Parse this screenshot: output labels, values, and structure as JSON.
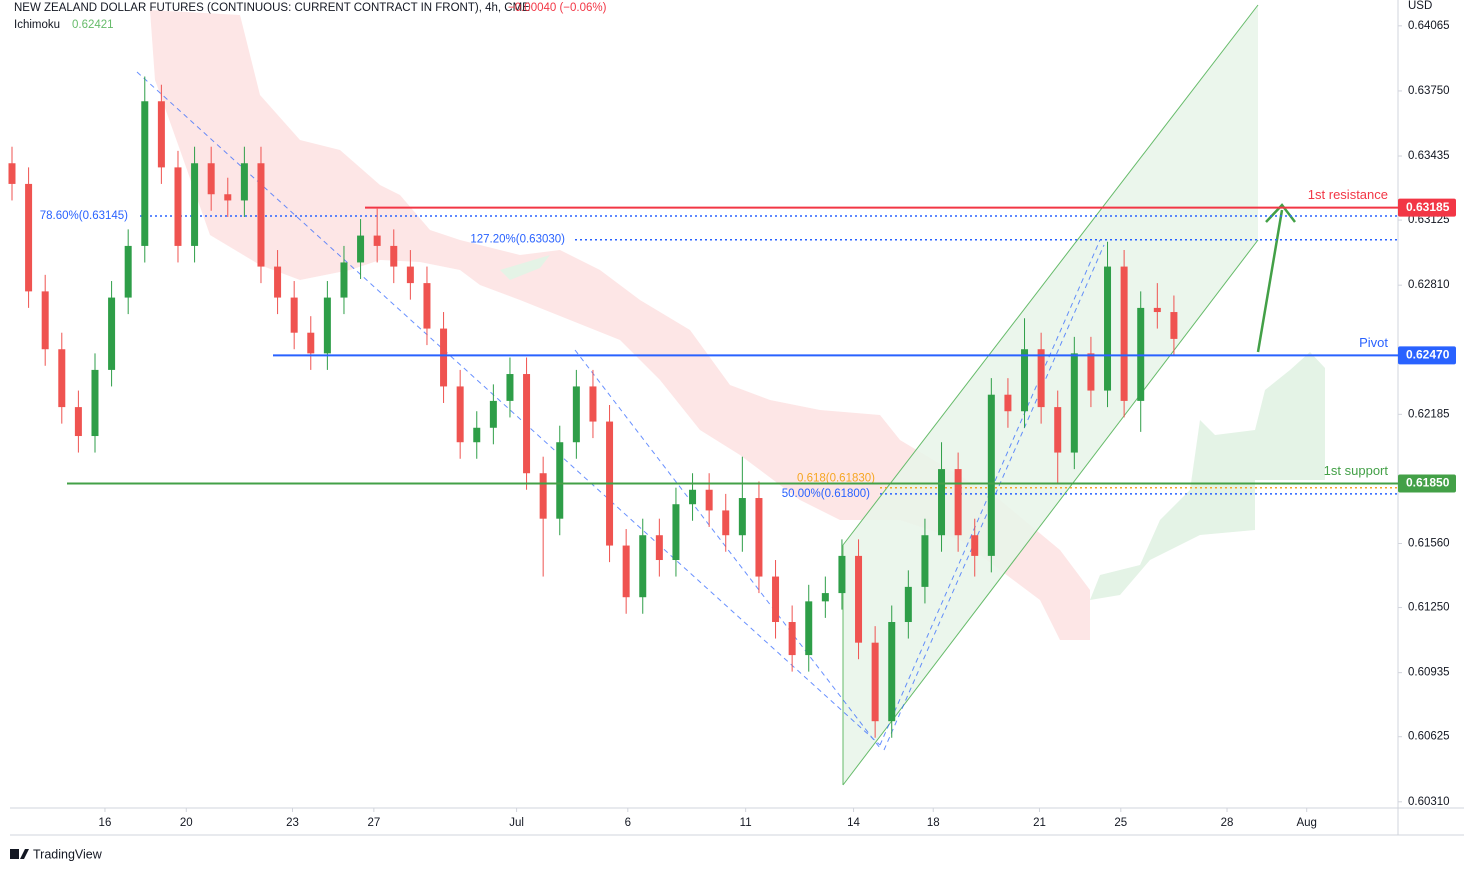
{
  "chart_data": {
    "type": "candlestick",
    "title": "NEW ZEALAND DOLLAR FUTURES (CONTINUOUS: CURRENT CONTRACT IN FRONT), 4h, CME",
    "change": "−0.00040 (−0.06%)",
    "indicator": "Ichimoku",
    "indicator_value": "0.62421",
    "currency": "USD",
    "brand": "TradingView",
    "up_color": "#2e9e48",
    "down_color": "#ef5350",
    "candles": [
      [
        0.634,
        0.6348,
        0.6322,
        0.633
      ],
      [
        0.633,
        0.6338,
        0.627,
        0.6278
      ],
      [
        0.6278,
        0.6286,
        0.6242,
        0.625
      ],
      [
        0.625,
        0.6258,
        0.6214,
        0.6222
      ],
      [
        0.6222,
        0.623,
        0.62,
        0.6208
      ],
      [
        0.6208,
        0.6248,
        0.62,
        0.624
      ],
      [
        0.624,
        0.6283,
        0.6232,
        0.6275
      ],
      [
        0.6275,
        0.6308,
        0.6267,
        0.63
      ],
      [
        0.63,
        0.6382,
        0.6292,
        0.637
      ],
      [
        0.637,
        0.6378,
        0.633,
        0.6338
      ],
      [
        0.6338,
        0.6346,
        0.6292,
        0.63
      ],
      [
        0.63,
        0.6348,
        0.6292,
        0.634
      ],
      [
        0.634,
        0.6348,
        0.6317,
        0.6325
      ],
      [
        0.6325,
        0.6333,
        0.6314,
        0.6322
      ],
      [
        0.6322,
        0.6348,
        0.6314,
        0.634
      ],
      [
        0.634,
        0.6348,
        0.6282,
        0.629
      ],
      [
        0.629,
        0.6298,
        0.6267,
        0.6275
      ],
      [
        0.6275,
        0.6283,
        0.625,
        0.6258
      ],
      [
        0.6258,
        0.6266,
        0.624,
        0.6248
      ],
      [
        0.6248,
        0.6283,
        0.624,
        0.6275
      ],
      [
        0.6275,
        0.63,
        0.6267,
        0.6292
      ],
      [
        0.6292,
        0.6313,
        0.6284,
        0.6305
      ],
      [
        0.6305,
        0.6318,
        0.6292,
        0.63
      ],
      [
        0.63,
        0.6308,
        0.6282,
        0.629
      ],
      [
        0.629,
        0.6298,
        0.6274,
        0.6282
      ],
      [
        0.6282,
        0.629,
        0.6252,
        0.626
      ],
      [
        0.626,
        0.6268,
        0.6224,
        0.6232
      ],
      [
        0.6232,
        0.624,
        0.6197,
        0.6205
      ],
      [
        0.6205,
        0.622,
        0.6197,
        0.6212
      ],
      [
        0.6212,
        0.6233,
        0.6204,
        0.6225
      ],
      [
        0.6225,
        0.6246,
        0.6217,
        0.6238
      ],
      [
        0.6238,
        0.6246,
        0.6182,
        0.619
      ],
      [
        0.619,
        0.6198,
        0.614,
        0.6168
      ],
      [
        0.6168,
        0.6213,
        0.616,
        0.6205
      ],
      [
        0.6205,
        0.624,
        0.6197,
        0.6232
      ],
      [
        0.6232,
        0.624,
        0.6207,
        0.6215
      ],
      [
        0.6215,
        0.6223,
        0.6147,
        0.6155
      ],
      [
        0.6155,
        0.6163,
        0.6122,
        0.613
      ],
      [
        0.613,
        0.6168,
        0.6122,
        0.616
      ],
      [
        0.616,
        0.6168,
        0.614,
        0.6148
      ],
      [
        0.6148,
        0.6183,
        0.614,
        0.6175
      ],
      [
        0.6175,
        0.619,
        0.6167,
        0.6182
      ],
      [
        0.6182,
        0.619,
        0.6164,
        0.6172
      ],
      [
        0.6172,
        0.618,
        0.6152,
        0.616
      ],
      [
        0.616,
        0.6198,
        0.6152,
        0.6178
      ],
      [
        0.6178,
        0.6186,
        0.6132,
        0.614
      ],
      [
        0.614,
        0.6148,
        0.611,
        0.6118
      ],
      [
        0.6118,
        0.6126,
        0.6094,
        0.6102
      ],
      [
        0.6102,
        0.6136,
        0.6094,
        0.6128
      ],
      [
        0.6128,
        0.614,
        0.612,
        0.6132
      ],
      [
        0.6132,
        0.6158,
        0.6124,
        0.615
      ],
      [
        0.615,
        0.6158,
        0.61,
        0.6108
      ],
      [
        0.6108,
        0.6116,
        0.6062,
        0.607
      ],
      [
        0.607,
        0.6126,
        0.6062,
        0.6118
      ],
      [
        0.6118,
        0.6143,
        0.611,
        0.6135
      ],
      [
        0.6135,
        0.6168,
        0.6127,
        0.616
      ],
      [
        0.616,
        0.6205,
        0.6152,
        0.6192
      ],
      [
        0.6192,
        0.62,
        0.6152,
        0.616
      ],
      [
        0.616,
        0.6168,
        0.614,
        0.615
      ],
      [
        0.615,
        0.6236,
        0.6142,
        0.6228
      ],
      [
        0.6228,
        0.6236,
        0.6212,
        0.622
      ],
      [
        0.622,
        0.6265,
        0.6212,
        0.625
      ],
      [
        0.625,
        0.6258,
        0.6214,
        0.6222
      ],
      [
        0.6222,
        0.623,
        0.6185,
        0.62
      ],
      [
        0.62,
        0.6256,
        0.6192,
        0.6248
      ],
      [
        0.6248,
        0.6256,
        0.6222,
        0.623
      ],
      [
        0.623,
        0.6302,
        0.6222,
        0.629
      ],
      [
        0.629,
        0.6298,
        0.6217,
        0.6225
      ],
      [
        0.6225,
        0.6278,
        0.621,
        0.627
      ],
      [
        0.627,
        0.6282,
        0.626,
        0.6268
      ],
      [
        0.6268,
        0.6276,
        0.6247,
        0.6255
      ]
    ],
    "xlim": [
      -0.12,
      83.5
    ],
    "xticks": [
      {
        "value": 5.6,
        "label": "16"
      },
      {
        "value": 10.5,
        "label": "20"
      },
      {
        "value": 16.9,
        "label": "23"
      },
      {
        "value": 21.8,
        "label": "27"
      },
      {
        "value": 30.4,
        "label": "Jul"
      },
      {
        "value": 37.1,
        "label": "6"
      },
      {
        "value": 44.2,
        "label": "11"
      },
      {
        "value": 50.7,
        "label": "14"
      },
      {
        "value": 55.5,
        "label": "18"
      },
      {
        "value": 61.9,
        "label": "21"
      },
      {
        "value": 66.8,
        "label": "25"
      },
      {
        "value": 73.2,
        "label": "28"
      },
      {
        "value": 78.0,
        "label": "Aug"
      }
    ],
    "ylim": [
      0.6028,
      0.6419
    ],
    "yticks": [
      0.64065,
      {
        "value": 0.6375,
        "label": "0.63750"
      },
      0.63435,
      0.63125,
      {
        "value": 0.6281,
        "label": "0.62810"
      },
      0.62185,
      {
        "value": 0.6156,
        "label": "0.61560"
      },
      {
        "value": 0.6125,
        "label": "0.61250"
      },
      0.60935,
      0.60625,
      {
        "value": 0.6031,
        "label": "0.60310"
      }
    ],
    "levels": [
      {
        "name": "1st resistance",
        "value": 0.63185,
        "value_label": "0.63185",
        "color": "#f23645"
      },
      {
        "name": "Pivot",
        "value": 0.6247,
        "value_label": "0.62470",
        "color": "#2962ff"
      },
      {
        "name": "1st support",
        "value": 0.6185,
        "value_label": "0.61850",
        "color": "#43a047"
      }
    ],
    "fib_levels": [
      {
        "label": "78.60%(0.63145)",
        "value": 0.63145,
        "color": "#2962ff"
      },
      {
        "label": "127.20%(0.63030)",
        "value": 0.6303,
        "color": "#2962ff"
      },
      {
        "label": "0.618(0.61830)",
        "value": 0.6183,
        "color": "#f5a623"
      },
      {
        "label": "50.00%(0.61800)",
        "value": 0.618,
        "color": "#2962ff"
      }
    ]
  }
}
